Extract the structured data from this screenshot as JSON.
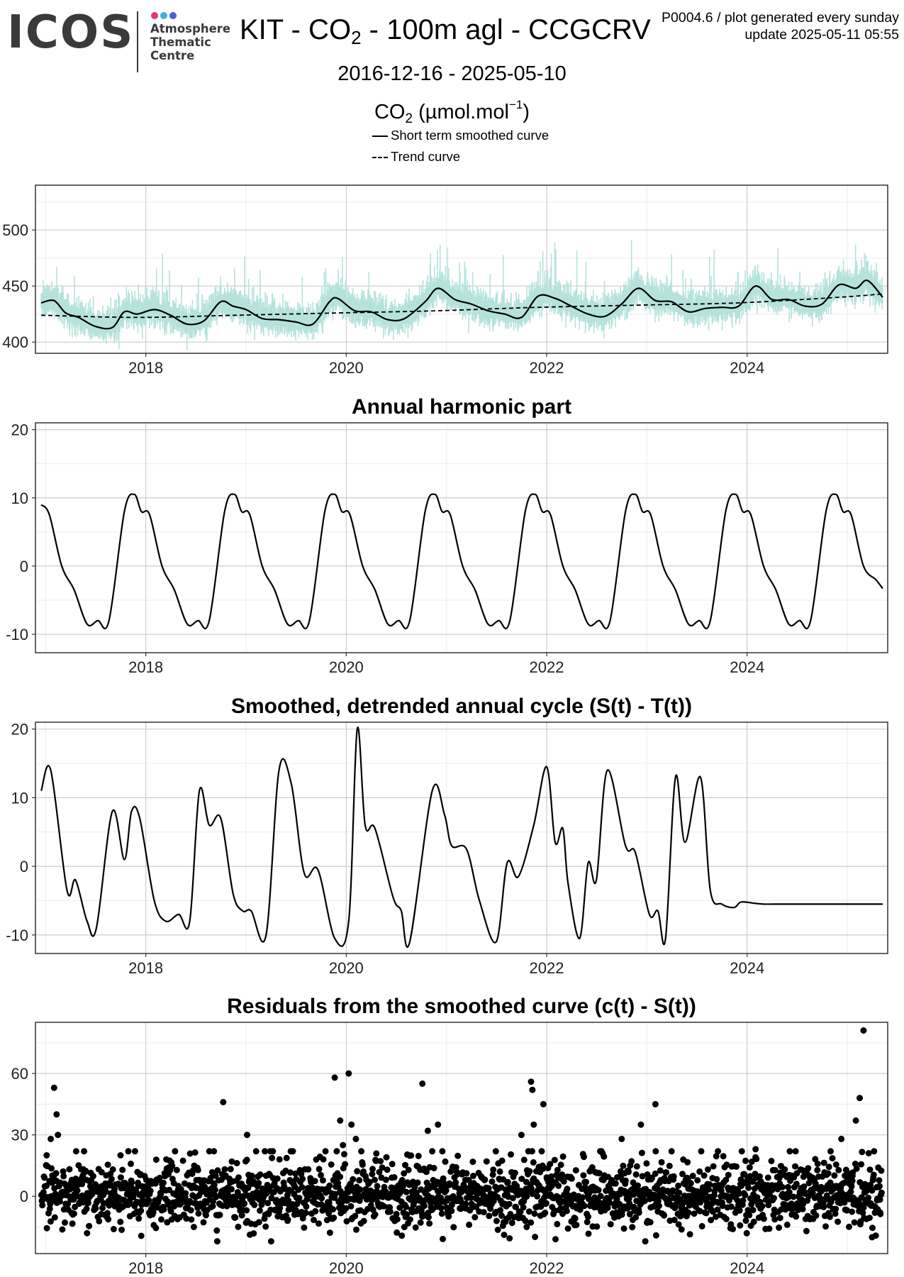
{
  "header": {
    "logo": "ICOS",
    "logo_sub": [
      "Atmosphere",
      "Thematic",
      "Centre"
    ],
    "logo_dot_colors": [
      "#e6347d",
      "#3aaee8",
      "#4a5fd8"
    ],
    "title_prefix": "KIT - CO",
    "title_sub": "2",
    "title_suffix": " - 100m agl - CCGCRV",
    "meta_line1": "P0004.6 / plot generated every sunday",
    "meta_line2": "update  2025-05-11 05:55",
    "date_range": "2016-12-16 - 2025-05-10",
    "unit_prefix": "CO",
    "unit_sub": "2",
    "unit_mid": " (µmol.mol",
    "unit_sup": "−1",
    "unit_suffix": ")",
    "legend_smooth": "Short term smoothed curve",
    "legend_trend": "Trend curve"
  },
  "colors": {
    "raw_band": "#b5e3dc",
    "line": "#000000",
    "grid_major": "#cccccc",
    "grid_minor": "#ececec"
  },
  "chart_data": [
    {
      "type": "line",
      "title": "",
      "x_ticks": [
        "2018",
        "2020",
        "2022",
        "2024"
      ],
      "y_ticks": [
        "400",
        "450",
        "500"
      ],
      "xlim": [
        "2016-11-25",
        "2025-05-28"
      ],
      "ylim": [
        390,
        540
      ],
      "grid": true,
      "series": [
        {
          "name": "Short term smoothed curve",
          "style": "solid",
          "x": [
            "2016-12-16",
            "2017-02-01",
            "2017-03-15",
            "2017-05-01",
            "2017-07-01",
            "2017-09-01",
            "2017-10-15",
            "2017-12-01",
            "2018-02-01",
            "2018-04-01",
            "2018-06-01",
            "2018-08-01",
            "2018-10-01",
            "2018-11-15",
            "2019-01-01",
            "2019-03-01",
            "2019-05-01",
            "2019-07-01",
            "2019-09-01",
            "2019-11-01",
            "2019-12-01",
            "2020-02-01",
            "2020-04-01",
            "2020-06-01",
            "2020-08-01",
            "2020-10-15",
            "2020-12-01",
            "2021-02-01",
            "2021-04-01",
            "2021-06-01",
            "2021-08-01",
            "2021-10-01",
            "2021-12-01",
            "2022-02-01",
            "2022-04-01",
            "2022-06-01",
            "2022-08-01",
            "2022-10-01",
            "2022-12-01",
            "2023-02-01",
            "2023-04-01",
            "2023-06-01",
            "2023-08-01",
            "2023-10-01",
            "2023-12-01",
            "2024-02-01",
            "2024-04-01",
            "2024-06-01",
            "2024-08-01",
            "2024-10-01",
            "2024-12-01",
            "2025-02-01",
            "2025-03-15",
            "2025-05-10"
          ],
          "y": [
            435,
            437,
            426,
            422,
            414,
            413,
            427,
            425,
            429,
            424,
            416,
            419,
            436,
            432,
            429,
            421,
            420,
            418,
            416,
            436,
            439,
            428,
            427,
            420,
            421,
            436,
            448,
            438,
            434,
            428,
            425,
            422,
            441,
            439,
            432,
            425,
            423,
            434,
            448,
            437,
            436,
            427,
            430,
            431,
            432,
            450,
            438,
            438,
            432,
            434,
            451,
            448,
            455,
            440
          ]
        },
        {
          "name": "Trend curve",
          "style": "dashed",
          "x": [
            "2016-12-16",
            "2017-12-01",
            "2018-12-01",
            "2019-12-01",
            "2020-12-01",
            "2021-12-01",
            "2022-12-01",
            "2023-12-01",
            "2024-12-01",
            "2025-05-10"
          ],
          "y": [
            424,
            422,
            424,
            426,
            428,
            431,
            433,
            435,
            440,
            443
          ]
        }
      ]
    },
    {
      "type": "line",
      "title": "Annual harmonic part",
      "x_ticks": [
        "2018",
        "2020",
        "2022",
        "2024"
      ],
      "y_ticks": [
        "-10",
        "0",
        "10",
        "20"
      ],
      "xlim": [
        "2016-11-25",
        "2025-05-28"
      ],
      "ylim": [
        -12.7,
        21
      ],
      "grid": true,
      "period": "1 year, repeating",
      "series": [
        {
          "name": "",
          "x": [
            "2016-12-16",
            "2017-01-15",
            "2017-03-01",
            "2017-04-15",
            "2017-06-01",
            "2017-07-10",
            "2017-08-20",
            "2017-10-15",
            "2017-11-20",
            "2017-12-16",
            "2018-01-15",
            "2018-03-01",
            "2018-04-15",
            "2018-06-01",
            "2018-07-10",
            "2018-08-20",
            "2018-10-15",
            "2018-11-20",
            "2018-12-16",
            "2019-01-15",
            "2019-03-01",
            "2019-04-15",
            "2019-06-01",
            "2019-07-10",
            "2019-08-20",
            "2019-10-15",
            "2019-11-20",
            "2019-12-16",
            "2020-01-15",
            "2020-03-01",
            "2020-04-15",
            "2020-06-01",
            "2020-07-10",
            "2020-08-20",
            "2020-10-15",
            "2020-11-20",
            "2020-12-16",
            "2021-01-15",
            "2021-03-01",
            "2021-04-15",
            "2021-06-01",
            "2021-07-10",
            "2021-08-20",
            "2021-10-15",
            "2021-11-20",
            "2021-12-16",
            "2022-01-15",
            "2022-03-01",
            "2022-04-15",
            "2022-06-01",
            "2022-07-10",
            "2022-08-20",
            "2022-10-15",
            "2022-11-20",
            "2022-12-16",
            "2023-01-15",
            "2023-03-01",
            "2023-04-15",
            "2023-06-01",
            "2023-07-10",
            "2023-08-20",
            "2023-10-15",
            "2023-11-20",
            "2023-12-16",
            "2024-01-15",
            "2024-03-01",
            "2024-04-15",
            "2024-06-01",
            "2024-07-10",
            "2024-08-20",
            "2024-10-15",
            "2024-11-20",
            "2024-12-16",
            "2025-01-15",
            "2025-03-01",
            "2025-04-15",
            "2025-05-10"
          ],
          "y": [
            9,
            7.5,
            0,
            -3.5,
            -8.5,
            -8,
            -8,
            8,
            10.5,
            8,
            7.5,
            0,
            -3.5,
            -8.5,
            -8,
            -8,
            8,
            10.5,
            8,
            7.5,
            0,
            -3.5,
            -8.5,
            -8,
            -8,
            8,
            10.5,
            8,
            7.5,
            0,
            -3.5,
            -8.5,
            -8,
            -8,
            8,
            10.5,
            8,
            7.5,
            0,
            -3.5,
            -8.5,
            -8,
            -8,
            8,
            10.5,
            8,
            7.5,
            0,
            -3.5,
            -8.5,
            -8,
            -8,
            8,
            10.5,
            8,
            7.5,
            0,
            -3.5,
            -8.5,
            -8,
            -8,
            8,
            10.5,
            8,
            7.5,
            0,
            -3.5,
            -8.5,
            -8,
            -8,
            8,
            10.5,
            8,
            7.5,
            0,
            -2,
            -3.3
          ]
        }
      ]
    },
    {
      "type": "line",
      "title": "Smoothed, detrended annual cycle (S(t) - T(t))",
      "x_ticks": [
        "2018",
        "2020",
        "2022",
        "2024"
      ],
      "y_ticks": [
        "-10",
        "0",
        "10",
        "20"
      ],
      "xlim": [
        "2016-11-25",
        "2025-05-28"
      ],
      "ylim": [
        -12.7,
        21
      ],
      "grid": true,
      "series": [
        {
          "name": "",
          "x": [
            "2016-12-16",
            "2017-01-20",
            "2017-03-20",
            "2017-04-20",
            "2017-06-01",
            "2017-07-05",
            "2017-09-01",
            "2017-10-15",
            "2017-11-10",
            "2017-12-10",
            "2018-02-01",
            "2018-03-15",
            "2018-05-01",
            "2018-06-10",
            "2018-07-15",
            "2018-08-20",
            "2018-10-01",
            "2018-11-15",
            "2018-12-20",
            "2019-01-20",
            "2019-03-15",
            "2019-05-01",
            "2019-06-15",
            "2019-08-01",
            "2019-09-20",
            "2019-11-20",
            "2020-01-10",
            "2020-02-10",
            "2020-03-10",
            "2020-04-15",
            "2020-06-20",
            "2020-07-20",
            "2020-08-20",
            "2020-11-10",
            "2020-12-25",
            "2021-01-20",
            "2021-03-15",
            "2021-05-01",
            "2021-07-01",
            "2021-08-10",
            "2021-09-20",
            "2021-11-15",
            "2022-01-01",
            "2022-02-01",
            "2022-03-01",
            "2022-03-20",
            "2022-05-01",
            "2022-06-01",
            "2022-07-01",
            "2022-08-10",
            "2022-10-15",
            "2022-11-20",
            "2023-01-10",
            "2023-02-10",
            "2023-03-10",
            "2023-04-15",
            "2023-05-20",
            "2023-07-15",
            "2023-08-20",
            "2023-10-01",
            "2023-11-15",
            "2023-12-10",
            "2024-02-01",
            "2024-03-01",
            "2024-04-10",
            "2024-06-01",
            "2024-07-01",
            "2024-08-10",
            "2024-10-05",
            "2024-11-15",
            "2024-12-10",
            "2025-01-10",
            "2025-03-01",
            "2025-05-10"
          ],
          "y": [
            11,
            14,
            -3.5,
            -2,
            -8,
            -9,
            8,
            1,
            8,
            7,
            -5,
            -8,
            -7,
            -8,
            11,
            6,
            7,
            -4,
            -6.5,
            -6.5,
            -10,
            14,
            12,
            -1,
            -0.5,
            -10.5,
            -8,
            20,
            6,
            5.5,
            -4.5,
            -6.5,
            -11,
            11,
            7.5,
            3,
            2.5,
            -5,
            -11,
            0.5,
            -1.5,
            6,
            14.5,
            3.5,
            5.5,
            -2.5,
            -10.5,
            0.5,
            -2,
            14,
            3,
            2,
            -7,
            -6.5,
            -10.5,
            13,
            3.5,
            13,
            -3.5,
            -5.5,
            -6,
            -5.2,
            -5.4,
            -5.5,
            -5.5,
            -5.5,
            -5.5,
            -5.5,
            -5.5,
            -5.5,
            -5.5,
            -5.5,
            -5.5,
            -5.5
          ]
        }
      ]
    },
    {
      "type": "scatter",
      "title": "Residuals from the smoothed curve (c(t) - S(t))",
      "x_ticks": [
        "2018",
        "2020",
        "2022",
        "2024"
      ],
      "y_ticks": [
        "0",
        "30",
        "60"
      ],
      "xlim": [
        "2016-11-25",
        "2025-05-28"
      ],
      "ylim": [
        -28,
        85
      ],
      "grid": true,
      "note": "Daily residual points; bulk between -20 and +20 around 0",
      "series": [
        {
          "name": "",
          "x": [
            "2017-01-05",
            "2017-01-20",
            "2017-02-01",
            "2017-02-10",
            "2017-02-15",
            "2017-06-01",
            "2017-10-01",
            "2018-02-01",
            "2018-10-10",
            "2019-01-05",
            "2019-06-01",
            "2019-11-20",
            "2019-12-10",
            "2019-12-20",
            "2020-01-10",
            "2020-01-20",
            "2020-02-05",
            "2020-10-05",
            "2020-10-25",
            "2020-11-10",
            "2020-12-01",
            "2021-04-01",
            "2021-10-01",
            "2021-10-20",
            "2021-11-05",
            "2021-11-10",
            "2021-11-15",
            "2021-12-20",
            "2022-06-01",
            "2022-10-01",
            "2022-11-01",
            "2022-12-10",
            "2023-02-01",
            "2023-06-01",
            "2023-11-10",
            "2024-02-01",
            "2024-07-01",
            "2024-11-01",
            "2024-12-10",
            "2025-01-20",
            "2025-02-01",
            "2025-02-15",
            "2025-03-01",
            "2025-04-01",
            "2025-05-01"
          ],
          "y": [
            20,
            28,
            53,
            40,
            30,
            -18,
            20,
            -5,
            46,
            30,
            -12,
            58,
            37,
            25,
            60,
            35,
            28,
            55,
            32,
            22,
            35,
            5,
            30,
            -15,
            56,
            52,
            35,
            45,
            -10,
            28,
            15,
            35,
            45,
            -8,
            -16,
            23,
            -5,
            22,
            28,
            10,
            37,
            48,
            81,
            -20,
            -8
          ]
        }
      ]
    }
  ]
}
